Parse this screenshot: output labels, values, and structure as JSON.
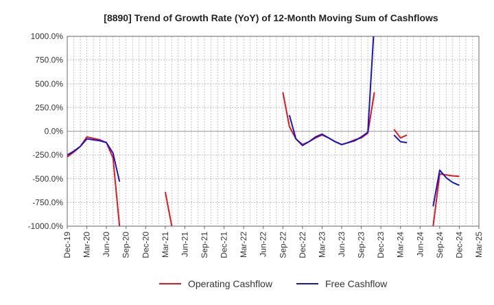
{
  "chart_data": {
    "type": "line",
    "title": "[8890]  Trend of Growth Rate (YoY) of 12-Month Moving Sum of Cashflows",
    "ylim": [
      -1000,
      1000
    ],
    "y_ticks": [
      1000,
      750,
      500,
      250,
      0,
      -250,
      -500,
      -750,
      -1000
    ],
    "y_tick_labels": [
      "1000.0%",
      "750.0%",
      "500.0%",
      "250.0%",
      "0.0%",
      "-250.0%",
      "-500.0%",
      "-750.0%",
      "-1000.0%"
    ],
    "x_tick_labels": [
      "Dec-19",
      "Mar-20",
      "Jun-20",
      "Sep-20",
      "Dec-20",
      "Mar-21",
      "Jun-21",
      "Sep-21",
      "Dec-21",
      "Mar-22",
      "Jun-22",
      "Sep-22",
      "Dec-22",
      "Mar-23",
      "Jun-23",
      "Sep-23",
      "Dec-23",
      "Mar-24",
      "Jun-24",
      "Sep-24",
      "Dec-24",
      "Mar-25"
    ],
    "x_range_months": [
      "2019-12",
      "2025-03"
    ],
    "grid": true,
    "legend_position": "bottom",
    "series": [
      {
        "name": "Operating Cashflow",
        "color": "#e8141a",
        "points": [
          [
            "2019-12",
            -270
          ],
          [
            "2020-01",
            -220
          ],
          [
            "2020-02",
            -160
          ],
          [
            "2020-03",
            -60
          ],
          [
            "2020-04",
            -75
          ],
          [
            "2020-05",
            -90
          ],
          [
            "2020-06",
            -120
          ],
          [
            "2020-07",
            -280
          ],
          [
            "2020-08",
            -1000
          ],
          null,
          [
            "2021-03",
            -640
          ],
          [
            "2021-04",
            -1000
          ],
          null,
          [
            "2022-09",
            410
          ],
          [
            "2022-10",
            50
          ],
          [
            "2022-11",
            -80
          ],
          [
            "2022-12",
            -140
          ],
          [
            "2023-01",
            -110
          ],
          [
            "2023-02",
            -70
          ],
          [
            "2023-03",
            -40
          ],
          [
            "2023-04",
            -70
          ],
          [
            "2023-05",
            -110
          ],
          [
            "2023-06",
            -140
          ],
          [
            "2023-07",
            -120
          ],
          [
            "2023-08",
            -90
          ],
          [
            "2023-09",
            -70
          ],
          [
            "2023-10",
            -20
          ],
          [
            "2023-11",
            410
          ],
          null,
          [
            "2024-02",
            20
          ],
          [
            "2024-03",
            -70
          ],
          [
            "2024-04",
            -40
          ],
          null,
          [
            "2024-08",
            -1000
          ],
          [
            "2024-09",
            -450
          ],
          [
            "2024-10",
            -460
          ],
          [
            "2024-11",
            -470
          ],
          [
            "2024-12",
            -475
          ]
        ]
      },
      {
        "name": "Free Cashflow",
        "color": "#1414c8",
        "points": [
          [
            "2019-12",
            -250
          ],
          [
            "2020-01",
            -210
          ],
          [
            "2020-02",
            -160
          ],
          [
            "2020-03",
            -80
          ],
          [
            "2020-04",
            -90
          ],
          [
            "2020-05",
            -100
          ],
          [
            "2020-06",
            -120
          ],
          [
            "2020-07",
            -230
          ],
          [
            "2020-08",
            -530
          ],
          null,
          [
            "2022-10",
            170
          ],
          [
            "2022-11",
            -80
          ],
          [
            "2022-12",
            -150
          ],
          [
            "2023-01",
            -110
          ],
          [
            "2023-02",
            -60
          ],
          [
            "2023-03",
            -30
          ],
          [
            "2023-04",
            -70
          ],
          [
            "2023-05",
            -110
          ],
          [
            "2023-06",
            -140
          ],
          [
            "2023-07",
            -120
          ],
          [
            "2023-08",
            -100
          ],
          [
            "2023-09",
            -60
          ],
          [
            "2023-10",
            -10
          ],
          [
            "2023-11",
            1150
          ],
          null,
          [
            "2024-02",
            -40
          ],
          [
            "2024-03",
            -110
          ],
          [
            "2024-04",
            -120
          ],
          null,
          [
            "2024-08",
            -790
          ],
          [
            "2024-09",
            -410
          ],
          [
            "2024-10",
            -490
          ],
          [
            "2024-11",
            -540
          ],
          [
            "2024-12",
            -570
          ]
        ]
      }
    ]
  }
}
